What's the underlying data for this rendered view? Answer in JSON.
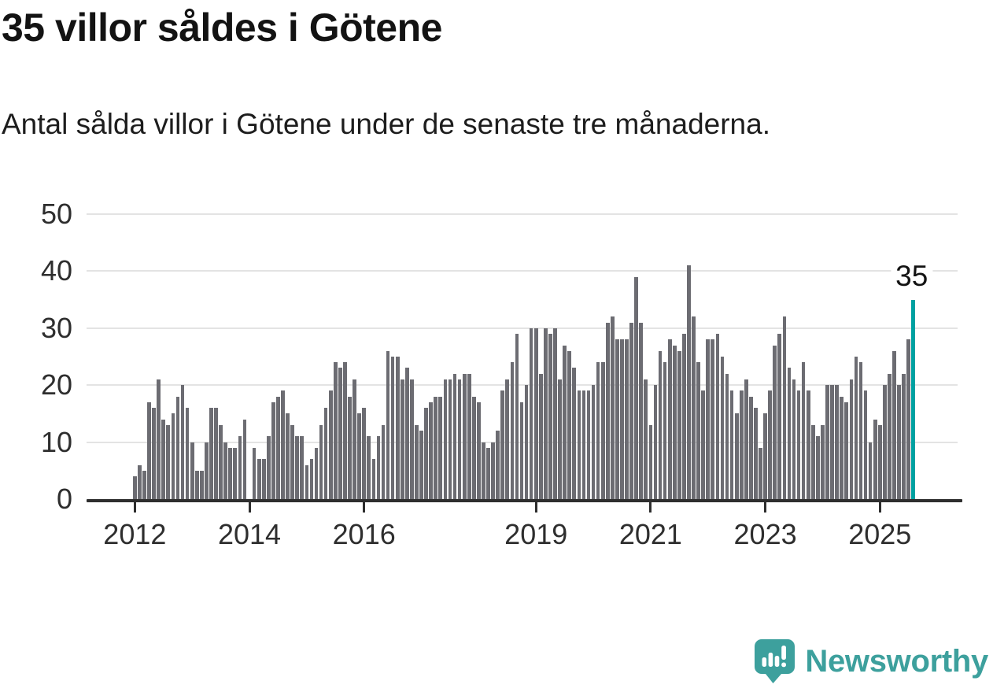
{
  "header": {
    "title": "35 villor såldes i Götene",
    "subtitle": "Antal sålda villor i Götene under de senaste tre månaderna."
  },
  "chart_data": {
    "type": "bar",
    "title": "35 villor såldes i Götene",
    "subtitle": "Antal sålda villor i Götene under de senaste tre månaderna.",
    "x_unit": "month",
    "x_start_label": "2012",
    "values": [
      4,
      6,
      5,
      17,
      16,
      21,
      14,
      13,
      15,
      18,
      20,
      16,
      10,
      5,
      5,
      10,
      16,
      16,
      13,
      10,
      9,
      9,
      11,
      14,
      0,
      9,
      7,
      7,
      11,
      17,
      18,
      19,
      15,
      13,
      11,
      11,
      6,
      7,
      9,
      13,
      16,
      19,
      24,
      23,
      24,
      18,
      21,
      15,
      16,
      11,
      7,
      11,
      13,
      26,
      25,
      25,
      21,
      23,
      21,
      13,
      12,
      16,
      17,
      18,
      18,
      21,
      21,
      22,
      21,
      22,
      22,
      18,
      17,
      10,
      9,
      10,
      12,
      19,
      21,
      24,
      29,
      17,
      20,
      30,
      30,
      22,
      30,
      29,
      30,
      21,
      27,
      26,
      23,
      19,
      19,
      19,
      20,
      24,
      24,
      31,
      32,
      28,
      28,
      28,
      31,
      39,
      31,
      21,
      13,
      20,
      26,
      24,
      28,
      27,
      26,
      29,
      41,
      32,
      24,
      19,
      28,
      28,
      29,
      25,
      22,
      19,
      15,
      19,
      21,
      18,
      16,
      9,
      15,
      19,
      27,
      29,
      32,
      23,
      21,
      19,
      24,
      19,
      13,
      11,
      13,
      20,
      20,
      20,
      18,
      17,
      21,
      25,
      24,
      19,
      10,
      14,
      13,
      20,
      22,
      26,
      20,
      22,
      28,
      35
    ],
    "highlight": {
      "index": 163,
      "value": 35,
      "label": "35",
      "color": "#00a1a1"
    },
    "y_ticks": [
      0,
      10,
      20,
      30,
      40,
      50
    ],
    "ylim": [
      0,
      50
    ],
    "x_ticks": [
      {
        "label": "2012",
        "month": 0
      },
      {
        "label": "2014",
        "month": 24
      },
      {
        "label": "2016",
        "month": 48
      },
      {
        "label": "2019",
        "month": 84
      },
      {
        "label": "2021",
        "month": 108
      },
      {
        "label": "2023",
        "month": 132
      },
      {
        "label": "2025",
        "month": 156
      }
    ],
    "bar_color": "#6c6c72",
    "grid": true,
    "legend_position": "none"
  },
  "footer": {
    "brand": "Newsworthy",
    "brand_color": "#3da09d",
    "logo_icon": "newsworthy-speech-bubble-chart-icon"
  }
}
